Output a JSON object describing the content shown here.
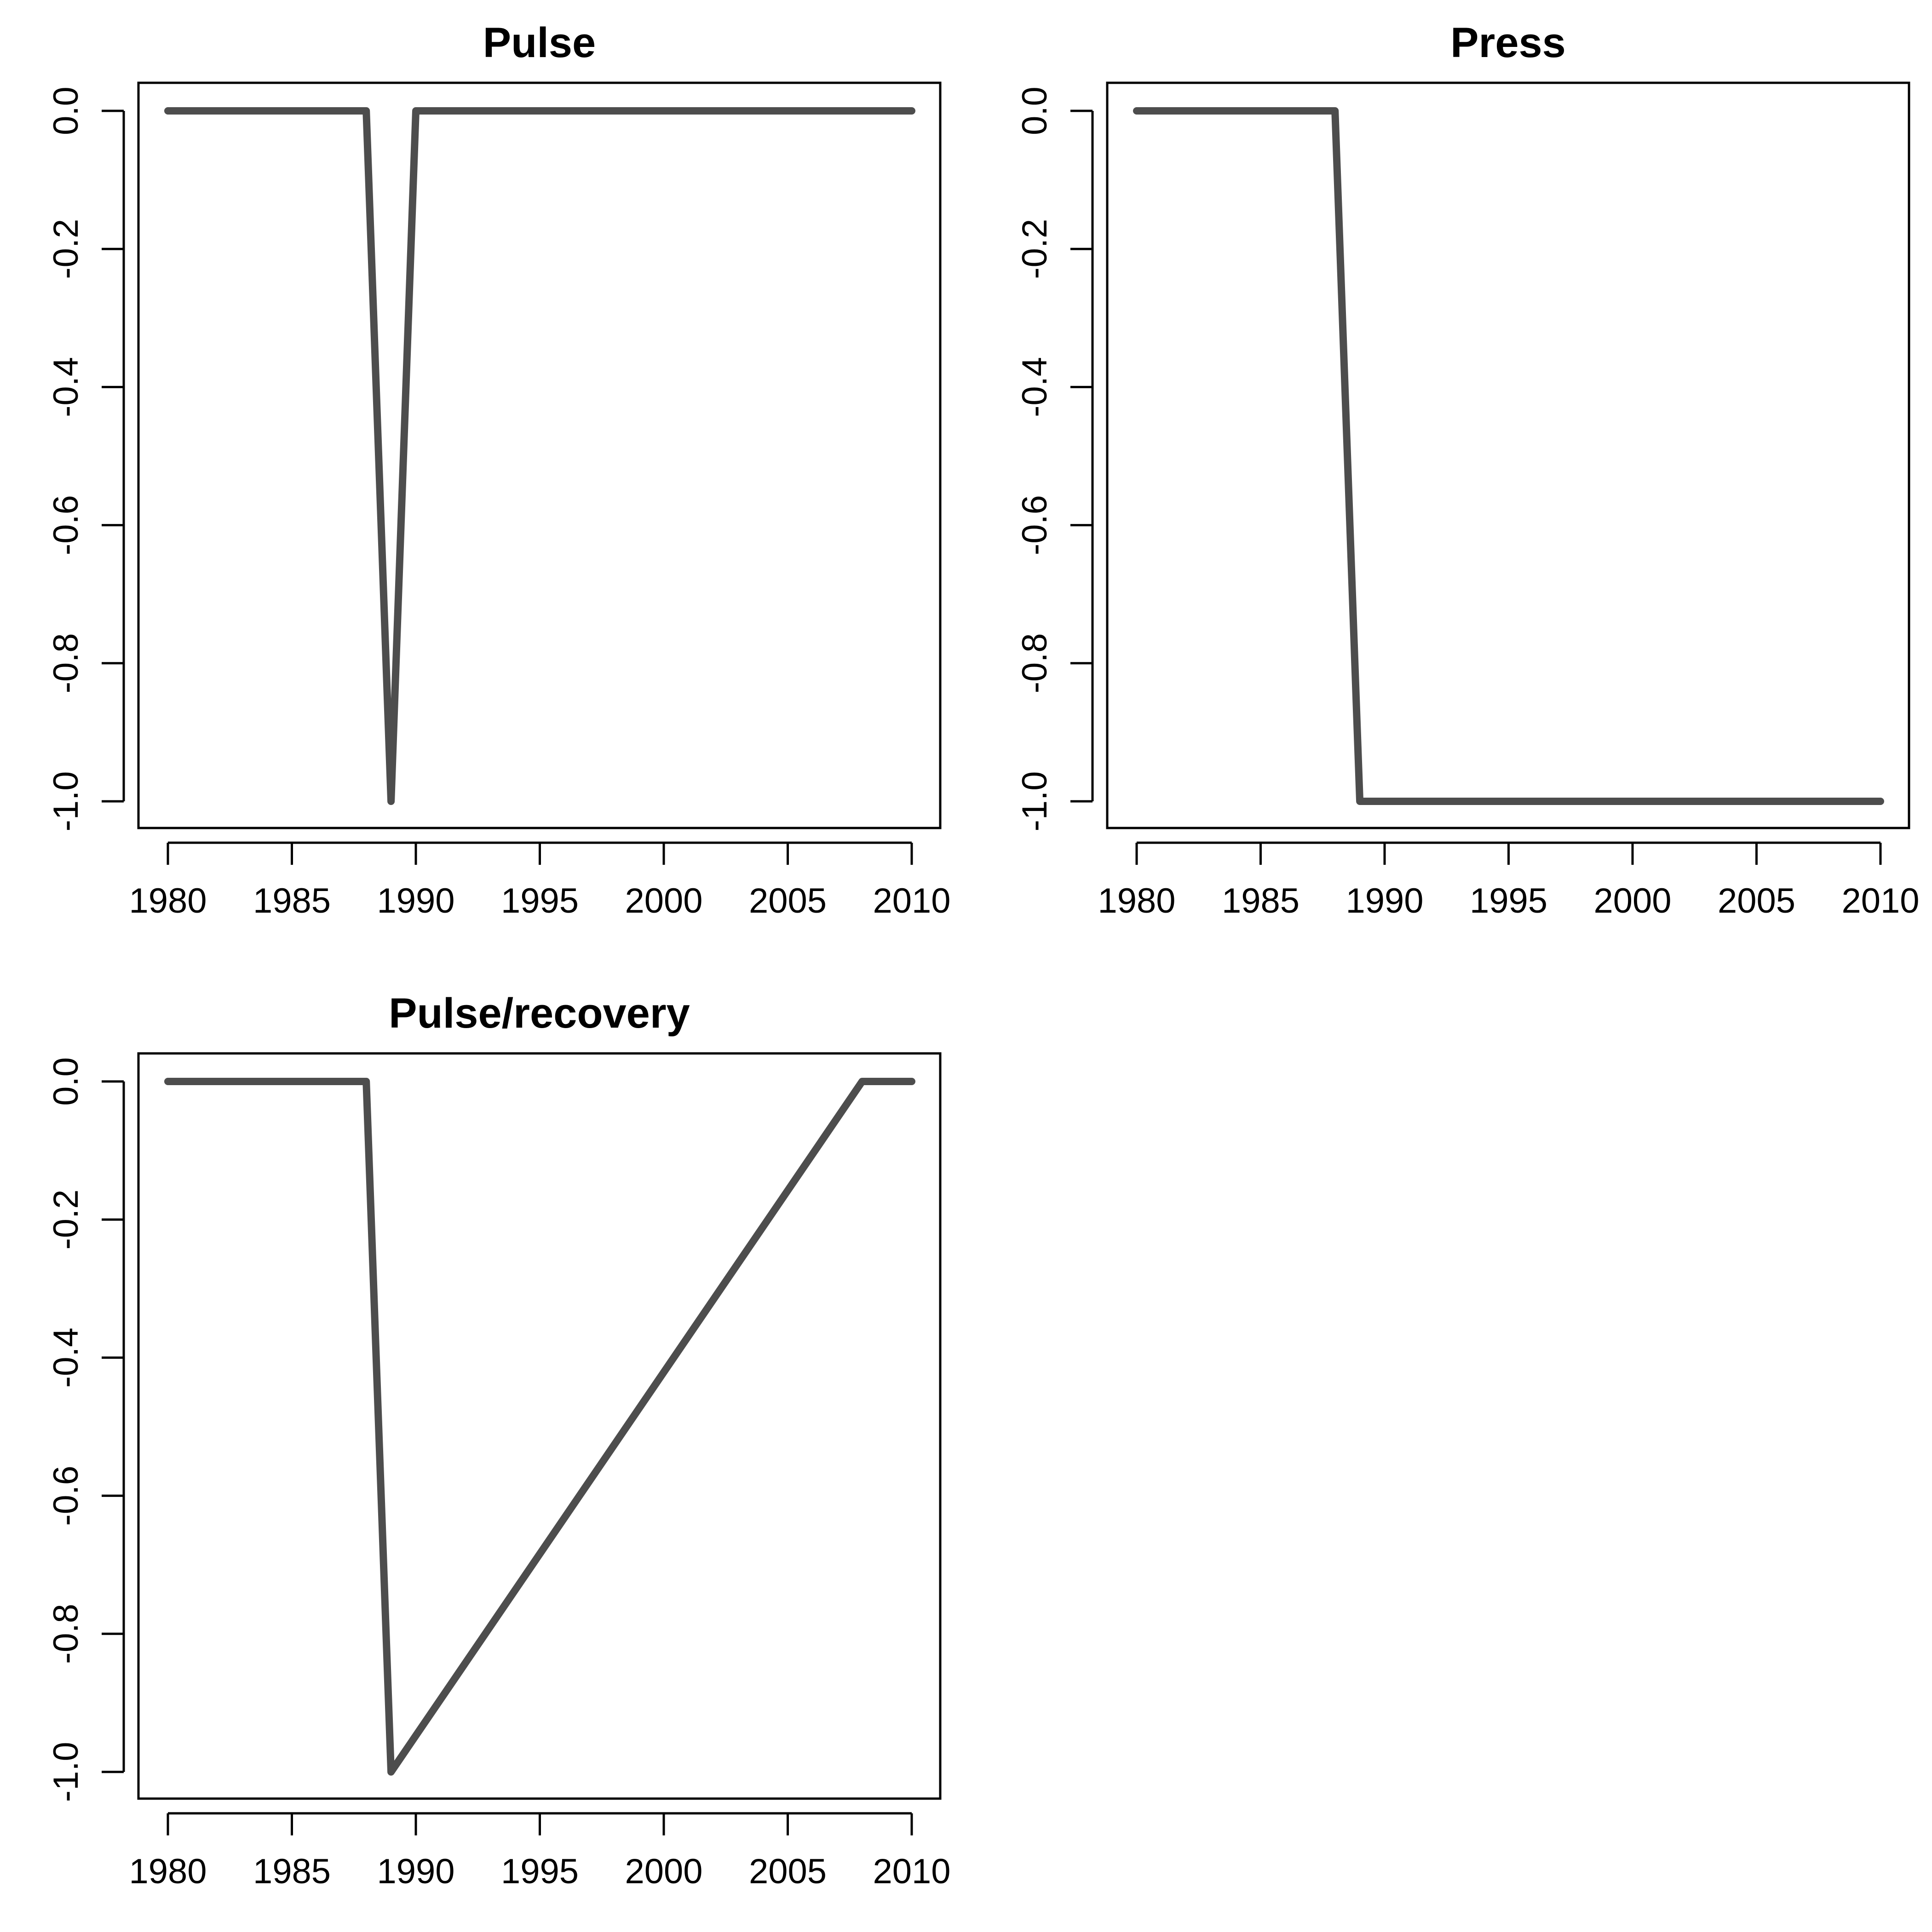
{
  "chart_data": [
    {
      "type": "line",
      "title": "Pulse",
      "xlabel": "",
      "ylabel": "",
      "xlim": [
        1980,
        2010
      ],
      "ylim": [
        -1.0,
        0.0
      ],
      "x_ticks": [
        "1980",
        "1985",
        "1990",
        "1995",
        "2000",
        "2005",
        "2010"
      ],
      "y_ticks": [
        "-1.0",
        "-0.8",
        "-0.6",
        "-0.4",
        "-0.2",
        "0.0"
      ],
      "grid": false,
      "line_color": "#4d4d4d",
      "series": [
        {
          "x": [
            1980,
            1988,
            1989,
            1990,
            2010
          ],
          "y": [
            0,
            0,
            -1,
            0,
            0
          ]
        }
      ]
    },
    {
      "type": "line",
      "title": "Press",
      "xlabel": "",
      "ylabel": "",
      "xlim": [
        1980,
        2010
      ],
      "ylim": [
        -1.0,
        0.0
      ],
      "x_ticks": [
        "1980",
        "1985",
        "1990",
        "1995",
        "2000",
        "2005",
        "2010"
      ],
      "y_ticks": [
        "-1.0",
        "-0.8",
        "-0.6",
        "-0.4",
        "-0.2",
        "0.0"
      ],
      "grid": false,
      "line_color": "#4d4d4d",
      "series": [
        {
          "x": [
            1980,
            1988,
            1989,
            2010
          ],
          "y": [
            0,
            0,
            -1,
            -1
          ]
        }
      ]
    },
    {
      "type": "line",
      "title": "Pulse/recovery",
      "xlabel": "",
      "ylabel": "",
      "xlim": [
        1980,
        2010
      ],
      "ylim": [
        -1.0,
        0.0
      ],
      "x_ticks": [
        "1980",
        "1985",
        "1990",
        "1995",
        "2000",
        "2005",
        "2010"
      ],
      "y_ticks": [
        "-1.0",
        "-0.8",
        "-0.6",
        "-0.4",
        "-0.2",
        "0.0"
      ],
      "grid": false,
      "line_color": "#4d4d4d",
      "series": [
        {
          "x": [
            1980,
            1988,
            1989,
            2008,
            2010
          ],
          "y": [
            0,
            0,
            -1,
            0,
            0
          ]
        }
      ]
    }
  ]
}
